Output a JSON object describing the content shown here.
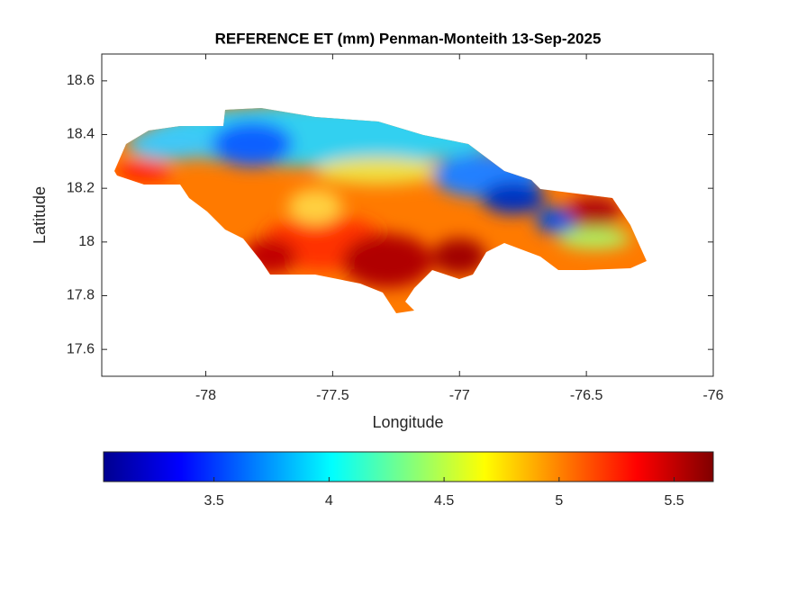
{
  "chart_data": {
    "type": "contour",
    "title": "REFERENCE ET (mm) Penman-Monteith 13-Sep-2025",
    "x_label": "Longitude",
    "y_label": "Latitude",
    "xlim": [
      -78.41,
      -76
    ],
    "xticks": [
      -78,
      -77.5,
      -77,
      -76.5,
      -76
    ],
    "ylim": [
      17.5,
      18.7
    ],
    "yticks": [
      17.6,
      17.8,
      18,
      18.2,
      18.4,
      18.6
    ],
    "colormap": "jet",
    "colorbar": {
      "clim": [
        3.02,
        5.67
      ],
      "ticks": [
        3.5,
        4,
        4.5,
        5,
        5.5
      ]
    }
  }
}
